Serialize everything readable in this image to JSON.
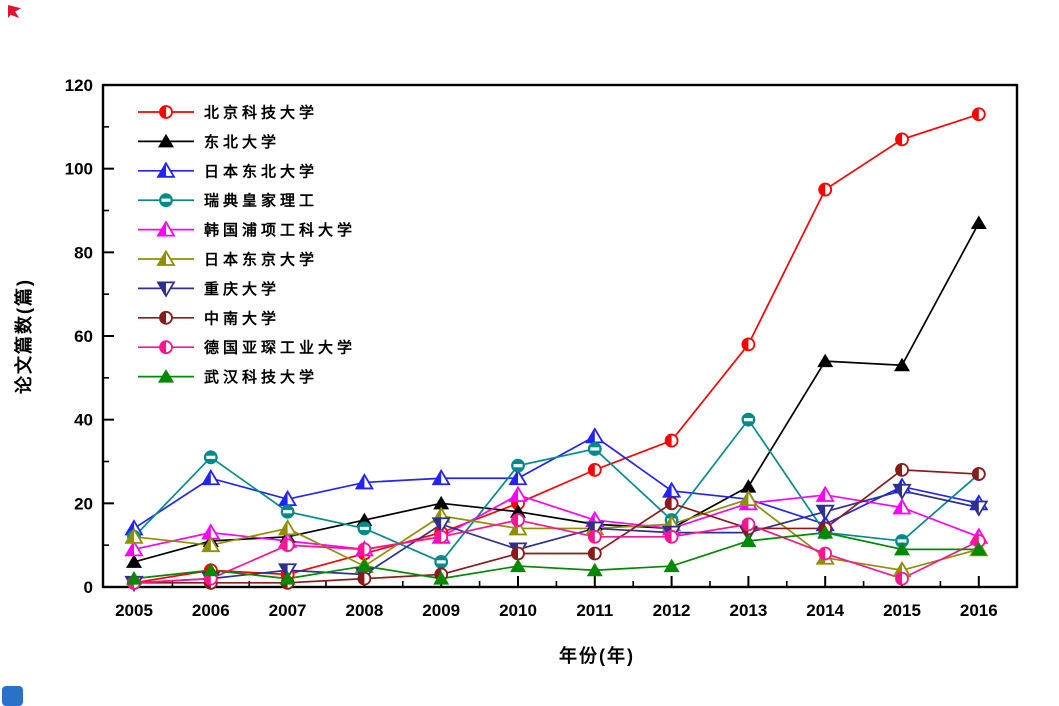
{
  "page": {
    "background": "#ffffff"
  },
  "artifacts": {
    "top_left_mark": "red-glyph",
    "top_left_color": "#e8112d",
    "bottom_left_mark": "blue-rounded-square",
    "bottom_left_color": "#2a72c9"
  },
  "chart_data": {
    "type": "line",
    "title": "",
    "xlabel": "年份(年)",
    "ylabel": "论文篇数(篇)",
    "x": [
      2005,
      2006,
      2007,
      2008,
      2009,
      2010,
      2011,
      2012,
      2013,
      2014,
      2015,
      2016
    ],
    "ylim": [
      0,
      120
    ],
    "yticks": [
      0,
      20,
      40,
      60,
      80,
      100,
      120
    ],
    "minor_y_step": 10,
    "grid": false,
    "legend_position": "inside-top-left",
    "series": [
      {
        "name": "北京科技大学",
        "color": "#FF0000",
        "marker": "circle-half",
        "values": [
          1,
          4,
          3,
          8,
          13,
          20,
          28,
          35,
          58,
          95,
          107,
          113
        ]
      },
      {
        "name": "东北大学",
        "color": "#000000",
        "marker": "triangle-solid",
        "values": [
          6,
          11,
          12,
          16,
          20,
          18,
          15,
          14,
          24,
          54,
          53,
          87
        ]
      },
      {
        "name": "日本东北大学",
        "color": "#2323FF",
        "marker": "triangle-half",
        "values": [
          14,
          26,
          21,
          25,
          26,
          26,
          36,
          23,
          21,
          15,
          24,
          20
        ]
      },
      {
        "name": "瑞典皇家理工",
        "color": "#008B8B",
        "marker": "circle-bar",
        "values": [
          12,
          31,
          18,
          14,
          6,
          29,
          33,
          16,
          40,
          13,
          11,
          27
        ]
      },
      {
        "name": "韩国浦项工科大学",
        "color": "#FF00FF",
        "marker": "triangle-half",
        "values": [
          9,
          13,
          11,
          9,
          12,
          22,
          16,
          14,
          20,
          22,
          19,
          12
        ]
      },
      {
        "name": "日本东京大学",
        "color": "#8F8F00",
        "marker": "triangle-half",
        "values": [
          12,
          10,
          14,
          5,
          17,
          14,
          14,
          15,
          21,
          7,
          4,
          9
        ]
      },
      {
        "name": "重庆大学",
        "color": "#2F2F8F",
        "marker": "triangle-down-half",
        "values": [
          1,
          2,
          4,
          3,
          15,
          9,
          14,
          13,
          13,
          18,
          23,
          19
        ]
      },
      {
        "name": "中南大学",
        "color": "#8B1A1A",
        "marker": "circle-half",
        "values": [
          1,
          1,
          1,
          2,
          3,
          8,
          8,
          20,
          14,
          14,
          28,
          27
        ]
      },
      {
        "name": "德国亚琛工业大学",
        "color": "#FF1493",
        "marker": "circle-half",
        "values": [
          1,
          2,
          10,
          9,
          12,
          16,
          12,
          12,
          15,
          8,
          2,
          11
        ]
      },
      {
        "name": "武汉科技大学",
        "color": "#008A00",
        "marker": "triangle-solid",
        "values": [
          2,
          4,
          2,
          5,
          2,
          5,
          4,
          5,
          11,
          13,
          9,
          9
        ]
      }
    ]
  }
}
